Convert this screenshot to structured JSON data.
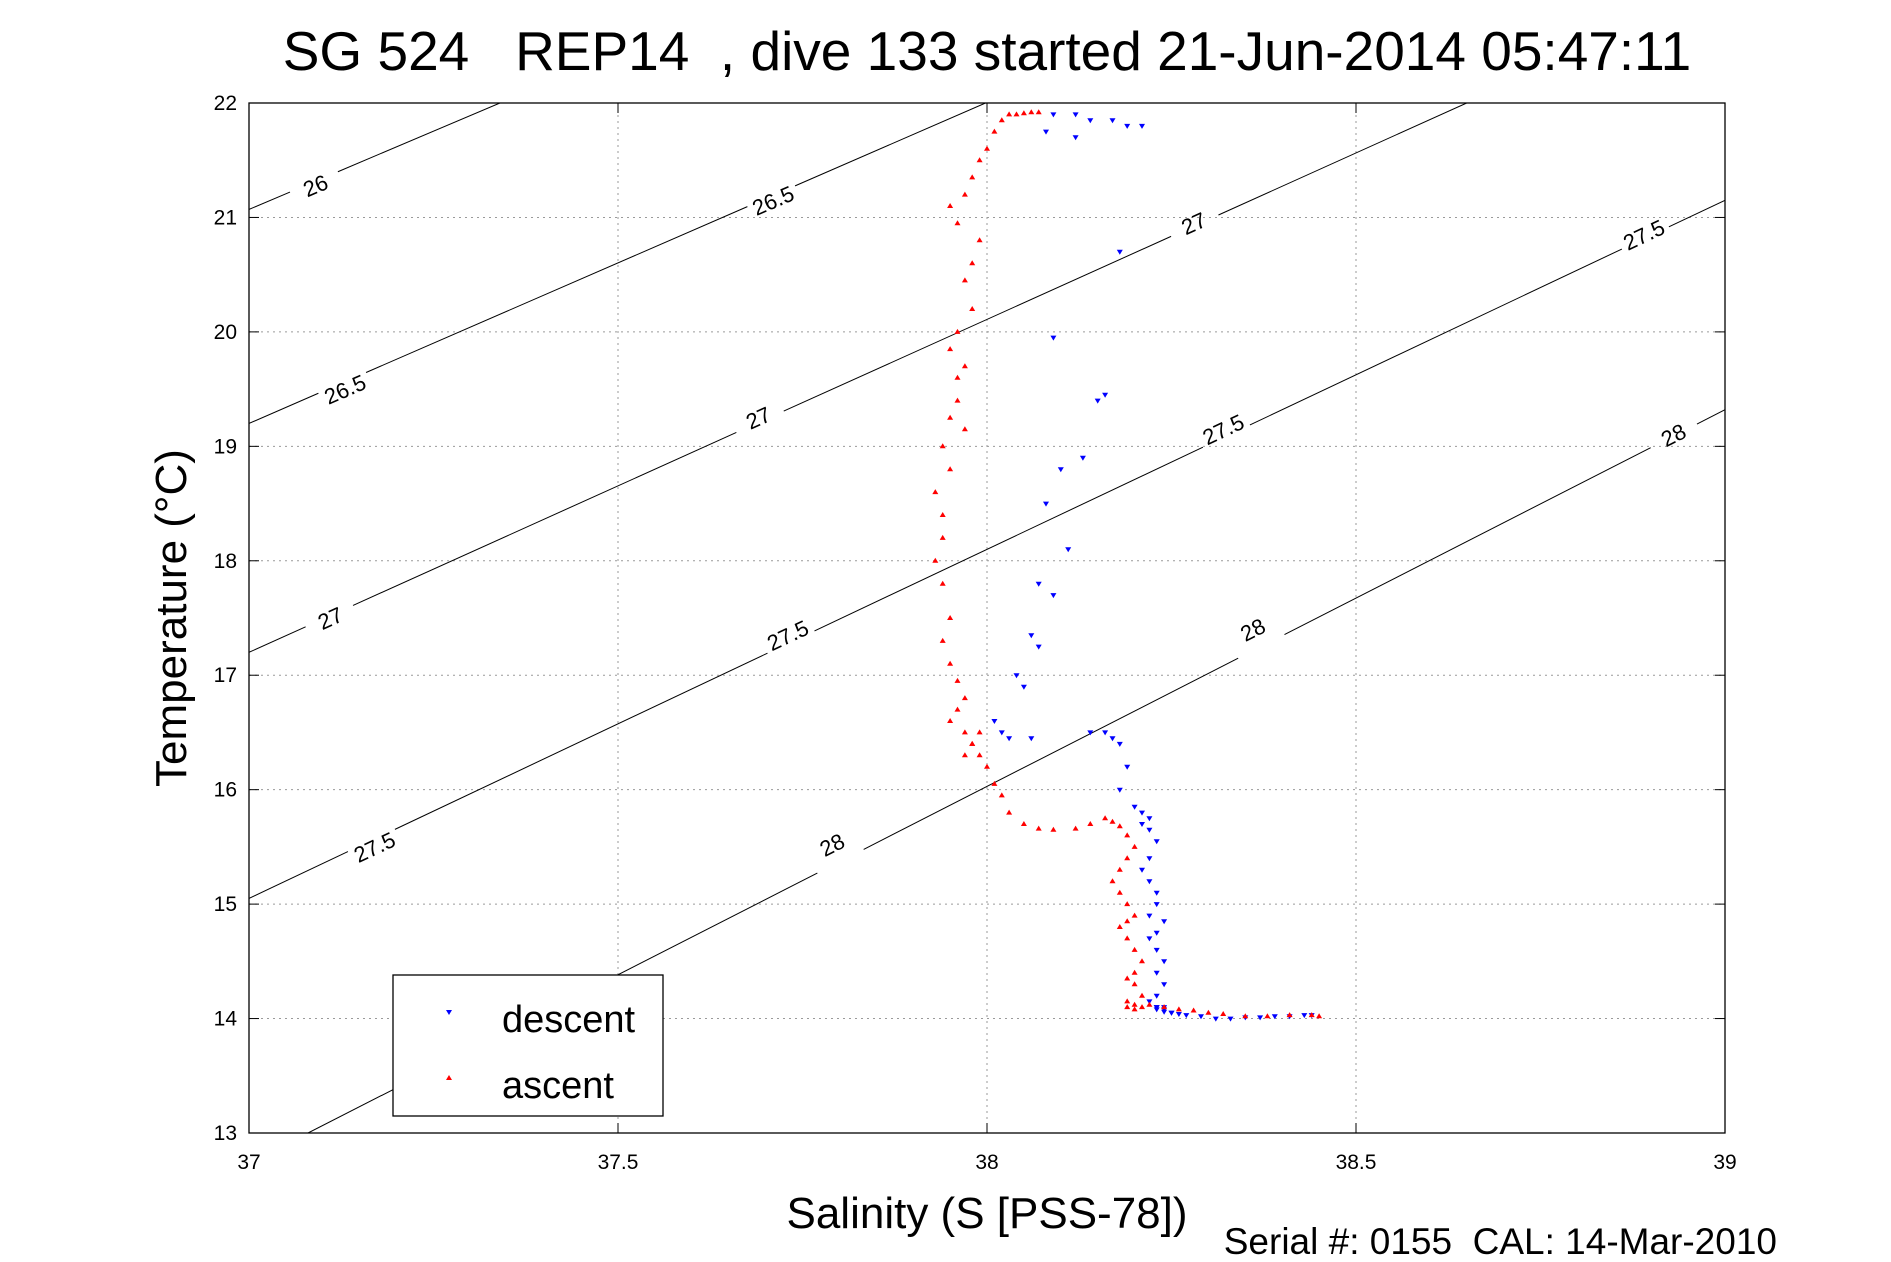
{
  "chart_data": {
    "type": "scatter",
    "title": "SG 524   REP14  , dive 133 started 21-Jun-2014 05:47:11",
    "xlabel": "Salinity (S [PSS-78])",
    "ylabel": "Temperature (°C)",
    "footer": "Serial #: 0155  CAL: 14-Mar-2010",
    "xlim": [
      37,
      39
    ],
    "ylim": [
      13,
      22
    ],
    "xticks": [
      "37",
      "37.5",
      "38",
      "38.5",
      "39"
    ],
    "yticks": [
      "13",
      "14",
      "15",
      "16",
      "17",
      "18",
      "19",
      "20",
      "21",
      "22"
    ],
    "grid": true,
    "legend_position": "bottom-left",
    "density_contours": [
      {
        "level": "26",
        "x": [
          37,
          37.34
        ],
        "y": [
          21.07,
          22.0
        ],
        "labels": [
          {
            "text": "26",
            "x": 37.09,
            "y": 21.28
          }
        ]
      },
      {
        "level": "26.5",
        "x": [
          37,
          37.998
        ],
        "y": [
          19.2,
          22.0
        ],
        "labels": [
          {
            "text": "26.5",
            "x": 37.13,
            "y": 19.5
          },
          {
            "text": "26.5",
            "x": 37.71,
            "y": 21.15
          }
        ]
      },
      {
        "level": "27",
        "x": [
          37,
          38.65
        ],
        "y": [
          17.2,
          22.0
        ],
        "labels": [
          {
            "text": "27",
            "x": 37.11,
            "y": 17.5
          },
          {
            "text": "27",
            "x": 37.69,
            "y": 19.25
          },
          {
            "text": "27",
            "x": 38.28,
            "y": 20.95
          }
        ]
      },
      {
        "level": "27.5",
        "x": [
          37,
          39
        ],
        "y": [
          15.05,
          21.15
        ],
        "labels": [
          {
            "text": "27.5",
            "x": 37.17,
            "y": 15.5
          },
          {
            "text": "27.5",
            "x": 37.73,
            "y": 17.35
          },
          {
            "text": "27.5",
            "x": 38.32,
            "y": 19.15
          },
          {
            "text": "27.5",
            "x": 38.89,
            "y": 20.85
          }
        ]
      },
      {
        "level": "28",
        "x": [
          37.08,
          39
        ],
        "y": [
          13.0,
          19.32
        ],
        "labels": [
          {
            "text": "28",
            "x": 37.79,
            "y": 15.52
          },
          {
            "text": "28",
            "x": 38.36,
            "y": 17.4
          },
          {
            "text": "28",
            "x": 38.93,
            "y": 19.1
          }
        ]
      }
    ],
    "series": [
      {
        "name": "descent",
        "color": "#0000ff",
        "marker": "triangle-down",
        "x": [
          38.09,
          38.12,
          38.14,
          38.17,
          38.19,
          38.21,
          38.12,
          38.08,
          38.18,
          38.09,
          38.16,
          38.15,
          38.13,
          38.1,
          38.08,
          38.11,
          38.07,
          38.09,
          38.06,
          38.07,
          38.04,
          38.05,
          38.01,
          38.02,
          38.03,
          38.06,
          38.14,
          38.16,
          38.17,
          38.18,
          38.19,
          38.18,
          38.2,
          38.21,
          38.22,
          38.21,
          38.22,
          38.23,
          38.22,
          38.21,
          38.22,
          38.23,
          38.23,
          38.22,
          38.24,
          38.23,
          38.22,
          38.23,
          38.24,
          38.23,
          38.24,
          38.23,
          38.22,
          38.23,
          38.24,
          38.23,
          38.24,
          38.25,
          38.23,
          38.24,
          38.25,
          38.26,
          38.27,
          38.29,
          38.31,
          38.33,
          38.35,
          38.37,
          38.39,
          38.41,
          38.43,
          38.44
        ],
        "y": [
          21.9,
          21.9,
          21.85,
          21.85,
          21.8,
          21.8,
          21.7,
          21.75,
          20.7,
          19.95,
          19.45,
          19.4,
          18.9,
          18.8,
          18.5,
          18.1,
          17.8,
          17.7,
          17.35,
          17.25,
          17.0,
          16.9,
          16.6,
          16.5,
          16.45,
          16.45,
          16.5,
          16.5,
          16.45,
          16.4,
          16.2,
          16.0,
          15.85,
          15.8,
          15.75,
          15.7,
          15.65,
          15.55,
          15.4,
          15.3,
          15.2,
          15.1,
          15.0,
          14.9,
          14.85,
          14.75,
          14.7,
          14.6,
          14.5,
          14.4,
          14.3,
          14.2,
          14.15,
          14.1,
          14.1,
          14.08,
          14.06,
          14.05,
          14.1,
          14.08,
          14.05,
          14.04,
          14.03,
          14.02,
          14.0,
          14.0,
          14.01,
          14.01,
          14.02,
          14.02,
          14.03,
          14.03
        ]
      },
      {
        "name": "ascent",
        "color": "#ff0000",
        "marker": "triangle-up",
        "x": [
          38.07,
          38.06,
          38.05,
          38.04,
          38.03,
          38.02,
          38.01,
          38.0,
          37.99,
          37.98,
          37.97,
          37.95,
          37.96,
          37.99,
          37.98,
          37.97,
          37.98,
          37.96,
          37.95,
          37.97,
          37.96,
          37.96,
          37.95,
          37.97,
          37.94,
          37.95,
          37.93,
          37.94,
          37.94,
          37.93,
          37.94,
          37.95,
          37.94,
          37.95,
          37.96,
          37.97,
          37.96,
          37.95,
          37.97,
          37.98,
          37.97,
          37.99,
          37.98,
          37.99,
          38.0,
          38.01,
          38.02,
          38.03,
          38.05,
          38.07,
          38.09,
          38.12,
          38.14,
          38.16,
          38.17,
          38.18,
          38.19,
          38.2,
          38.19,
          38.18,
          38.17,
          38.18,
          38.19,
          38.2,
          38.19,
          38.18,
          38.19,
          38.2,
          38.21,
          38.2,
          38.19,
          38.2,
          38.21,
          38.19,
          38.2,
          38.19,
          38.2,
          38.21,
          38.22,
          38.24,
          38.26,
          38.28,
          38.3,
          38.32,
          38.35,
          38.38,
          38.41,
          38.44,
          38.45
        ],
        "y": [
          21.92,
          21.92,
          21.91,
          21.9,
          21.9,
          21.85,
          21.75,
          21.6,
          21.5,
          21.35,
          21.2,
          21.1,
          20.95,
          20.8,
          20.6,
          20.45,
          20.2,
          20.0,
          19.85,
          19.7,
          19.6,
          19.4,
          19.25,
          19.15,
          19.0,
          18.8,
          18.6,
          18.4,
          18.2,
          18.0,
          17.8,
          17.5,
          17.3,
          17.1,
          16.95,
          16.8,
          16.7,
          16.6,
          16.5,
          16.4,
          16.3,
          16.3,
          16.4,
          16.5,
          16.2,
          16.05,
          15.95,
          15.8,
          15.7,
          15.66,
          15.65,
          15.66,
          15.7,
          15.75,
          15.72,
          15.68,
          15.6,
          15.5,
          15.4,
          15.3,
          15.2,
          15.1,
          15.0,
          14.9,
          14.85,
          14.8,
          14.7,
          14.6,
          14.5,
          14.4,
          14.35,
          14.3,
          14.2,
          14.15,
          14.12,
          14.1,
          14.08,
          14.1,
          14.12,
          14.1,
          14.08,
          14.07,
          14.05,
          14.04,
          14.02,
          14.02,
          14.03,
          14.03,
          14.02
        ]
      }
    ]
  }
}
